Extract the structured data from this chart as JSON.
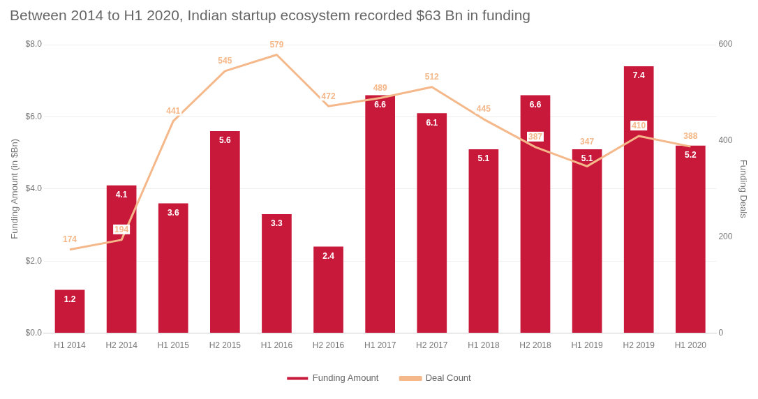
{
  "chart_data": {
    "type": "bar",
    "title": "Between 2014 to H1 2020, Indian startup ecosystem recorded $63 Bn in funding",
    "ylabel": "Funding Amount (in $Bn)",
    "y2label": "Funding Deals",
    "categories": [
      "H1 2014",
      "H2 2014",
      "H1 2015",
      "H2 2015",
      "H1 2016",
      "H2 2016",
      "H1 2017",
      "H2 2017",
      "H1 2018",
      "H2 2018",
      "H1 2019",
      "H2 2019",
      "H1 2020"
    ],
    "series": [
      {
        "name": "Funding Amount",
        "color": "#c8193a",
        "values": [
          1.2,
          4.1,
          3.6,
          5.6,
          3.3,
          2.4,
          6.6,
          6.1,
          5.1,
          6.6,
          5.1,
          7.4,
          5.2
        ]
      },
      {
        "name": "Deal Count",
        "type": "line",
        "axis": "y2",
        "color": "#f5b88a",
        "values": [
          174,
          194,
          441,
          545,
          579,
          472,
          489,
          512,
          445,
          387,
          347,
          410,
          388
        ]
      }
    ],
    "ylim": [
      0,
      8
    ],
    "yticks": [
      {
        "value": 0,
        "label": "$0.0"
      },
      {
        "value": 2,
        "label": "$2.0"
      },
      {
        "value": 4,
        "label": "$4.0"
      },
      {
        "value": 6,
        "label": "$6.0"
      },
      {
        "value": 8,
        "label": "$8.0"
      }
    ],
    "y2lim": [
      0,
      600
    ],
    "y2ticks": [
      0,
      200,
      400,
      600
    ],
    "grid": "y",
    "legend": "bottom",
    "data_labels": true,
    "marker": "none"
  }
}
